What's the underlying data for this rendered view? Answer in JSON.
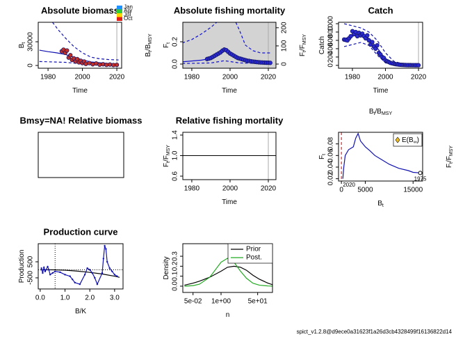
{
  "chart_data": [
    {
      "type": "line",
      "title": "Absolute biomass",
      "xlabel": [
        {
          "text": "Time"
        }
      ],
      "ylabel": [
        {
          "text": "B"
        },
        {
          "sub": "t"
        }
      ],
      "y2label": [
        {
          "text": "B"
        },
        {
          "sub": "t"
        },
        {
          "text": "/B"
        },
        {
          "sub": "MSY"
        }
      ],
      "xlim": [
        1974.3,
        2022.8
      ],
      "ylim": [
        -3500,
        54700
      ],
      "xticks": [
        1980,
        2000,
        2020
      ],
      "yticks": [
        0,
        30000
      ],
      "legend": {
        "labels": [
          "Jan",
          "Apr",
          "Jul",
          "Oct"
        ],
        "colors": [
          "#1e90ff",
          "#32cd32",
          "#ffd700",
          "#e0201a"
        ]
      },
      "vlines": [
        {
          "value": 2020,
          "color": "#aaaaaa"
        }
      ],
      "series": [
        {
          "mode": "line",
          "color": "#1010b0",
          "x": [
            1975,
            1980,
            1985,
            1990,
            1995,
            2000,
            2005,
            2010,
            2015,
            2021
          ],
          "values": [
            19400,
            17500,
            16000,
            14000,
            10500,
            7000,
            4500,
            3500,
            2500,
            1800
          ]
        },
        {
          "mode": "line",
          "dash": true,
          "color": "#1010b0",
          "x": [
            1982.6,
            1986,
            1990,
            1995,
            2000,
            2005,
            2010,
            2015,
            2021
          ],
          "values": [
            54700,
            45000,
            35000,
            24000,
            16000,
            10500,
            8500,
            7500,
            7000
          ]
        },
        {
          "mode": "line",
          "dash": true,
          "color": "#1010b0",
          "x": [
            1975,
            1990,
            2000,
            2010,
            2021
          ],
          "values": [
            5000,
            4000,
            2000,
            1000,
            500
          ]
        },
        {
          "mode": "points",
          "color": "#c0302a",
          "x": [
            1988,
            1989,
            1990,
            1991,
            1992,
            1993,
            1994,
            1995,
            1996,
            1997,
            1998,
            1999,
            2000,
            2001,
            2002,
            2004,
            2006,
            2008,
            2010,
            2012,
            2014,
            2016,
            2018,
            2020
          ],
          "values": [
            18000,
            20000,
            16000,
            19000,
            10000,
            13000,
            7000,
            9000,
            5000,
            8000,
            4000,
            6000,
            3000,
            5000,
            2000,
            3000,
            1500,
            2500,
            1000,
            1500,
            800,
            1200,
            600,
            800
          ]
        }
      ]
    },
    {
      "type": "line",
      "title": "Absolute fishing mortality",
      "xlabel": [
        {
          "text": "Time"
        }
      ],
      "ylabel": [
        {
          "text": "F"
        },
        {
          "sub": "t"
        }
      ],
      "y2label": [
        {
          "text": "F"
        },
        {
          "sub": "t"
        },
        {
          "text": "/F"
        },
        {
          "sub": "MSY"
        }
      ],
      "xlim": [
        1975.3,
        2024
      ],
      "ylim": [
        -0.0375,
        0.375
      ],
      "y2lim": [
        -23,
        230
      ],
      "xticks": [
        1980,
        2000,
        2020
      ],
      "yticks": [
        {
          "value": 0,
          "label": "0.0"
        },
        0.2
      ],
      "y2ticks": [
        0,
        100,
        200
      ],
      "background": "#d3d3d3",
      "vlines": [
        {
          "value": 2020,
          "color": "#aaaaaa"
        }
      ],
      "series": [
        {
          "mode": "line",
          "dash": true,
          "color": "#1010d0",
          "x": [
            1975,
            1980,
            1985,
            1990,
            1993,
            1997,
            2003,
            2005,
            2008,
            2012,
            2016,
            2021
          ],
          "values": [
            0.19,
            0.22,
            0.27,
            0.33,
            0.375,
            null,
            0.375,
            0.3,
            0.17,
            0.12,
            0.1,
            0.1
          ]
        },
        {
          "mode": "line",
          "color": "#1010d0",
          "x": [
            1975,
            1985,
            1990,
            1995,
            1997,
            2000,
            2005,
            2010,
            2015,
            2021
          ],
          "values": [
            0.02,
            0.035,
            0.05,
            0.1,
            0.12,
            0.09,
            0.05,
            0.03,
            0.02,
            0.015
          ]
        },
        {
          "mode": "line",
          "dash": true,
          "color": "#1010d0",
          "x": [
            1975,
            1990,
            1997,
            2005,
            2021
          ],
          "values": [
            0.005,
            0.01,
            0.03,
            0.01,
            0.003
          ]
        },
        {
          "mode": "points",
          "color": "#2b2bd0",
          "x": [
            1988,
            1989,
            1990,
            1991,
            1992,
            1993,
            1994,
            1995,
            1996,
            1997,
            1998,
            1999,
            2000,
            2001,
            2002,
            2003,
            2004,
            2005,
            2006,
            2007,
            2008,
            2009,
            2010,
            2011,
            2012,
            2013,
            2014,
            2015,
            2016,
            2017,
            2018,
            2019,
            2020,
            2021
          ],
          "values": [
            0.045,
            0.05,
            0.055,
            0.065,
            0.075,
            0.085,
            0.095,
            0.105,
            0.12,
            0.13,
            0.125,
            0.11,
            0.095,
            0.085,
            0.075,
            0.065,
            0.055,
            0.05,
            0.045,
            0.04,
            0.035,
            0.03,
            0.028,
            0.025,
            0.022,
            0.02,
            0.018,
            0.016,
            0.015,
            0.014,
            0.013,
            0.012,
            0.012,
            0.011
          ]
        }
      ]
    },
    {
      "type": "line",
      "title": "Catch",
      "xlabel": [
        {
          "text": "Time"
        }
      ],
      "ylabel": [
        {
          "text": "Catch"
        }
      ],
      "xlim": [
        1971.6,
        2022.5
      ],
      "ylim": [
        -69,
        1034
      ],
      "xticks": [
        1980,
        2000,
        2020
      ],
      "yticks": [
        0,
        200,
        400,
        600,
        800,
        1000
      ],
      "vlines": [
        {
          "value": 2020,
          "color": "#aaaaaa"
        }
      ],
      "series": [
        {
          "mode": "line",
          "color": "#1010b0",
          "x": [
            1975,
            1980,
            1985,
            1990,
            1995,
            2000,
            2005,
            2010,
            2015,
            2021
          ],
          "values": [
            640,
            700,
            730,
            650,
            420,
            150,
            40,
            10,
            5,
            3
          ]
        },
        {
          "mode": "line",
          "dash": true,
          "color": "#1010b0",
          "x": [
            1975,
            1980,
            1985,
            1990,
            1995,
            2000,
            2005,
            2010,
            2021
          ],
          "values": [
            1000,
            950,
            900,
            800,
            600,
            300,
            100,
            40,
            10
          ]
        },
        {
          "mode": "line",
          "dash": true,
          "color": "#1010b0",
          "x": [
            1975,
            1980,
            1985,
            1990,
            1995,
            2000,
            2005,
            2010,
            2021
          ],
          "values": [
            450,
            500,
            550,
            480,
            250,
            60,
            15,
            3,
            1
          ]
        },
        {
          "mode": "points",
          "color": "#2b2bd0",
          "x": [
            1975,
            1976,
            1977,
            1978,
            1979,
            1980,
            1981,
            1982,
            1983,
            1984,
            1985,
            1986,
            1987,
            1988,
            1989,
            1990,
            1991,
            1992,
            1993,
            1994,
            1995,
            1996,
            1997,
            1998,
            1999,
            2000,
            2001,
            2002,
            2003,
            2004,
            2005,
            2006,
            2007,
            2008,
            2009,
            2010,
            2011,
            2012,
            2013,
            2014,
            2015,
            2016,
            2017,
            2018,
            2019,
            2020
          ],
          "values": [
            620,
            610,
            600,
            650,
            700,
            820,
            750,
            800,
            700,
            780,
            720,
            760,
            700,
            650,
            720,
            600,
            500,
            560,
            450,
            400,
            480,
            300,
            260,
            200,
            180,
            120,
            100,
            80,
            60,
            50,
            40,
            30,
            25,
            20,
            15,
            12,
            10,
            8,
            6,
            5,
            5,
            4,
            4,
            3,
            3,
            3
          ]
        }
      ]
    },
    {
      "type": "line",
      "title": "Bmsy=NA! Relative biomass"
    },
    {
      "type": "line",
      "title": "Relative fishing mortality",
      "xlabel": [
        {
          "text": "Time"
        }
      ],
      "ylabel": [
        {
          "text": "F"
        },
        {
          "sub": "t"
        },
        {
          "text": "/F"
        },
        {
          "sub": "MSY"
        }
      ],
      "xlim": [
        1975.3,
        2024
      ],
      "ylim": [
        0.532,
        1.454
      ],
      "xticks": [
        1980,
        2000,
        2020
      ],
      "yticks": [
        0.6,
        {
          "value": 1,
          "label": "1.0"
        },
        1.4
      ],
      "hlines": [
        {
          "value": 1,
          "color": "#000000"
        }
      ],
      "vlines": [
        {
          "value": 2020,
          "color": "#aaaaaa"
        }
      ]
    },
    {
      "type": "line",
      "xlabel": [
        {
          "text": "B"
        },
        {
          "sub": "t"
        }
      ],
      "ylabel": [
        {
          "text": "F"
        },
        {
          "sub": "t"
        }
      ],
      "x2label": [
        {
          "text": "B"
        },
        {
          "sub": "t"
        },
        {
          "text": "/B"
        },
        {
          "sub": "MSY"
        }
      ],
      "y2label": [
        {
          "text": "F"
        },
        {
          "sub": "t"
        },
        {
          "text": "/F"
        },
        {
          "sub": "MSY"
        }
      ],
      "xlim": [
        -600,
        17000
      ],
      "ylim": [
        0.016,
        0.1
      ],
      "xticks": [
        0,
        5000,
        15000
      ],
      "yticks": [
        0.02,
        0.04,
        0.06,
        0.08
      ],
      "vlines": [
        {
          "value": 0,
          "color": "#cc0000",
          "dash": true
        }
      ],
      "legend": {
        "label": [
          {
            "text": "E(B"
          },
          {
            "sub": "∞"
          },
          {
            "text": ")"
          }
        ],
        "color": "#f0c020"
      },
      "series": [
        {
          "mode": "line",
          "color": "#1010b0",
          "end_labels": [
            "1975",
            "2020"
          ],
          "x": [
            16500,
            15000,
            14000,
            12000,
            10000,
            8000,
            7000,
            6000,
            5000,
            4000,
            3500,
            3000,
            2500,
            1500,
            800,
            500,
            300
          ],
          "values": [
            0.03,
            0.031,
            0.034,
            0.038,
            0.045,
            0.055,
            0.06,
            0.068,
            0.075,
            0.085,
            0.098,
            0.09,
            0.075,
            0.07,
            0.06,
            0.04,
            0.02
          ]
        }
      ]
    },
    {
      "type": "line",
      "title": "Production curve",
      "xlabel": [
        {
          "text": "B/K"
        }
      ],
      "ylabel": [
        {
          "text": "Production"
        }
      ],
      "xlim": [
        -0.08,
        3.34
      ],
      "ylim": [
        -1195,
        1630
      ],
      "xticks": [
        {
          "value": 0,
          "label": "0.0"
        },
        {
          "value": 1,
          "label": "1.0"
        },
        {
          "value": 2,
          "label": "2.0"
        },
        {
          "value": 3,
          "label": "3.0"
        }
      ],
      "yticks": [
        -500,
        500
      ],
      "hlines": [
        {
          "value": 0,
          "color": "#000000",
          "dot": true
        }
      ],
      "vlines": [
        {
          "value": 0.6,
          "color": "#000000",
          "dot": true
        }
      ],
      "series": [
        {
          "mode": "line",
          "color": "#000000",
          "x": [
            0,
            0.5,
            1,
            1.5,
            2,
            2.5,
            3,
            3.2
          ],
          "values": [
            0,
            0,
            -20,
            -80,
            -160,
            -260,
            -400,
            -470
          ]
        },
        {
          "mode": "both",
          "color": "#1010b0",
          "x": [
            0.05,
            0.1,
            0.15,
            0.2,
            0.3,
            0.35,
            0.4,
            0.5,
            0.6,
            0.8,
            1.0,
            1.2,
            1.3,
            1.4,
            1.6,
            1.8,
            1.9,
            2.0,
            2.1,
            2.2,
            2.3,
            2.5,
            2.55,
            2.6,
            2.65,
            2.7,
            2.8,
            2.9,
            3.0,
            3.1
          ],
          "values": [
            100,
            -200,
            150,
            -100,
            200,
            0,
            -300,
            -200,
            -100,
            -150,
            -300,
            -400,
            -600,
            -800,
            -900,
            -300,
            100,
            0,
            -200,
            -500,
            -900,
            -200,
            700,
            1500,
            1300,
            500,
            100,
            -100,
            -300,
            -400
          ]
        }
      ]
    },
    {
      "type": "line",
      "xlabel": [
        {
          "text": "n"
        }
      ],
      "ylabel": [
        {
          "text": "Density"
        }
      ],
      "xlog": true,
      "xlim": [
        0.0168,
        244
      ],
      "ylim": [
        -0.063,
        0.426
      ],
      "xticks": [
        {
          "value": 0.05,
          "label": "5e-02"
        },
        {
          "value": 1,
          "label": "1e+00"
        },
        {
          "value": 50,
          "label": "5e+01"
        }
      ],
      "yticks": [
        {
          "value": 0,
          "label": "0.0"
        },
        0.1,
        0.2,
        0.3
      ],
      "series": [
        {
          "mode": "line",
          "name": "Prior",
          "color": "#000000",
          "x": [
            0.02,
            0.05,
            0.1,
            0.3,
            1,
            2,
            4,
            8,
            15,
            30,
            60,
            150,
            244
          ],
          "values": [
            0.01,
            0.03,
            0.05,
            0.09,
            0.15,
            0.19,
            0.2,
            0.19,
            0.16,
            0.11,
            0.07,
            0.03,
            0.015
          ]
        },
        {
          "mode": "line",
          "name": "Post.",
          "color": "#22aa22",
          "x": [
            0.02,
            0.05,
            0.1,
            0.3,
            1,
            2,
            4,
            8,
            15,
            30,
            60,
            150,
            244
          ],
          "values": [
            0,
            0.005,
            0.02,
            0.09,
            0.24,
            0.28,
            0.24,
            0.15,
            0.08,
            0.03,
            0.01,
            0.002,
            0.001
          ]
        }
      ]
    }
  ],
  "footer": "spict_v1.2.8@d9ece0a31623f1a26d3cb4328499f16136822d14"
}
